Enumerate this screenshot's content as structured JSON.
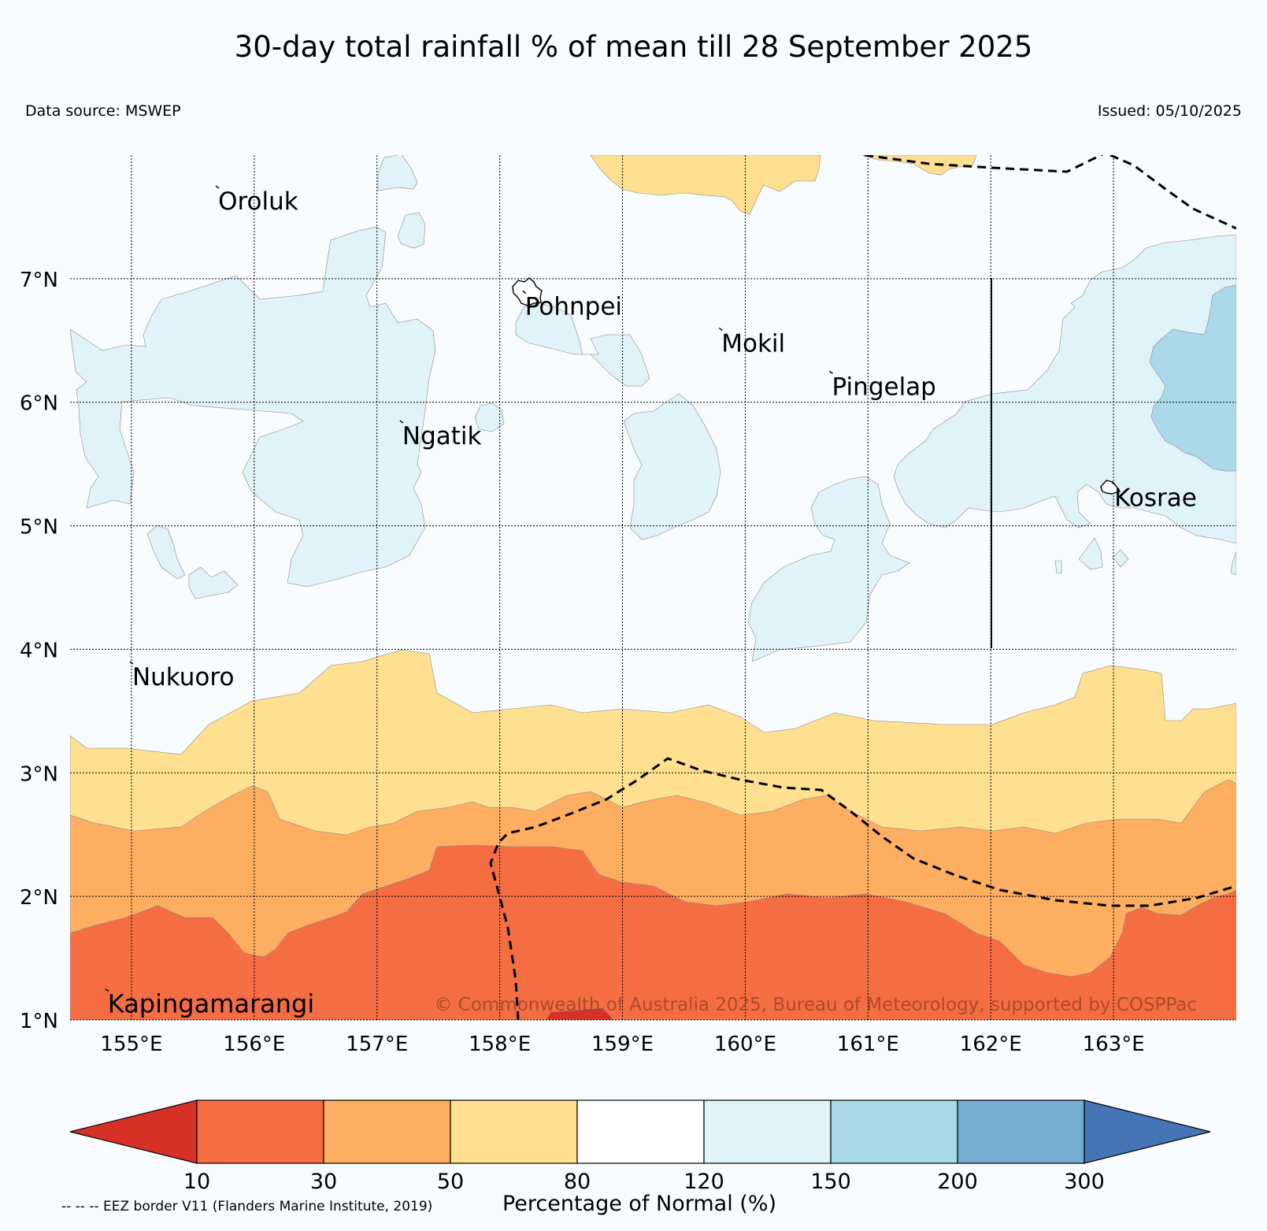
{
  "header": {
    "title": "30-day total rainfall % of mean till 28 September 2025",
    "data_source": "Data source: MSWEP",
    "issued": "Issued: 05/10/2025"
  },
  "map": {
    "lat_range": [
      1,
      8
    ],
    "lon_range": [
      154.5,
      164
    ],
    "lat_ticks": [
      "7°N",
      "6°N",
      "5°N",
      "4°N",
      "3°N",
      "2°N",
      "1°N"
    ],
    "lon_ticks": [
      "155°E",
      "156°E",
      "157°E",
      "158°E",
      "159°E",
      "160°E",
      "161°E",
      "162°E",
      "163°E"
    ],
    "places": [
      {
        "name": "Oroluk",
        "lon": 155.7,
        "lat": 7.7
      },
      {
        "name": "Pohnpei",
        "lon": 158.2,
        "lat": 6.85
      },
      {
        "name": "Mokil",
        "lon": 159.8,
        "lat": 6.55
      },
      {
        "name": "Pingelap",
        "lon": 160.7,
        "lat": 6.2
      },
      {
        "name": "Ngatik",
        "lon": 157.2,
        "lat": 5.8
      },
      {
        "name": "Kosrae",
        "lon": 163.0,
        "lat": 5.3
      },
      {
        "name": "Nukuoro",
        "lon": 155.0,
        "lat": 3.85
      },
      {
        "name": "Kapingamarangi",
        "lon": 154.8,
        "lat": 1.2
      }
    ],
    "copyright": "© Commonwealth of Australia 2025, Bureau of Meteorology, supported by COSPPac"
  },
  "legend": {
    "title": "Percentage of Normal (%)",
    "boundaries": [
      "10",
      "30",
      "50",
      "80",
      "120",
      "150",
      "200",
      "300"
    ],
    "colors": [
      "#d73027",
      "#f46d43",
      "#fdae61",
      "#fee090",
      "#ffffff",
      "#e0f3f8",
      "#abd9e9",
      "#74add1",
      "#4575b4"
    ],
    "eez_note": "-- -- -- EEZ border V11 (Flanders Marine Institute, 2019)"
  }
}
